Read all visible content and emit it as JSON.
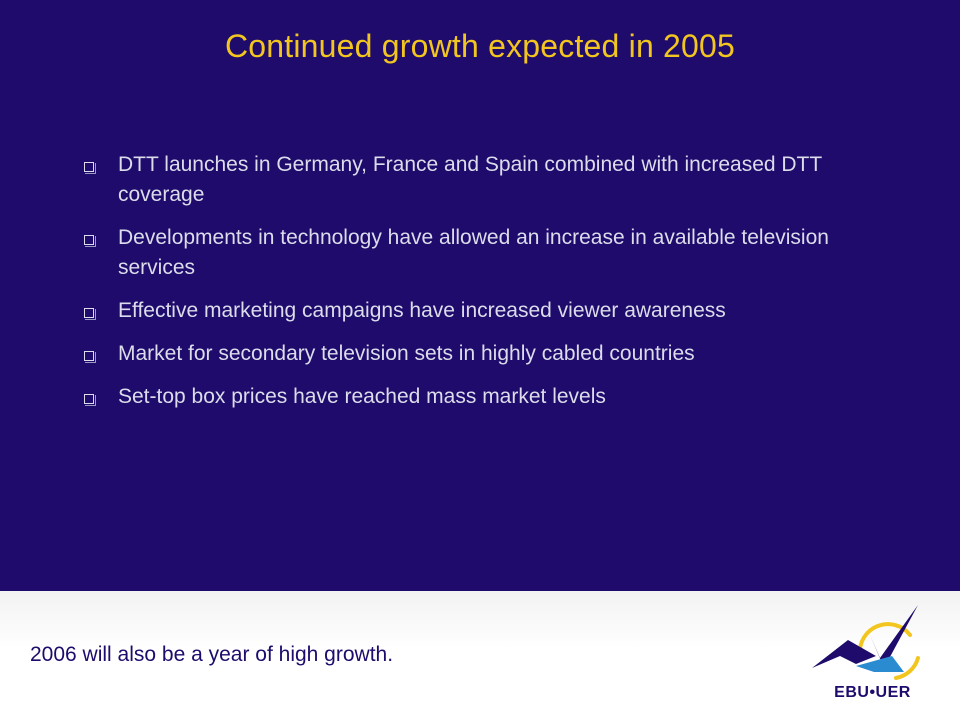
{
  "slide": {
    "title": "Continued growth expected in 2005",
    "bullets": [
      "DTT launches in Germany, France and Spain combined with increased DTT coverage",
      "Developments in technology have allowed an increase in available television services",
      "Effective marketing campaigns have increased viewer awareness",
      "Market for secondary television sets in highly cabled countries",
      "Set-top box prices have reached mass market levels"
    ],
    "footer_note": "2006  will also be a year of high growth."
  },
  "logo": {
    "text": "EBU•UER",
    "colors": {
      "primary": "#1e0b6c",
      "accent": "#f2c61f",
      "secondary": "#2a8bd0"
    }
  },
  "colors": {
    "background": "#1e0b6c",
    "title": "#f2c61f",
    "text": "#dcdcea"
  }
}
